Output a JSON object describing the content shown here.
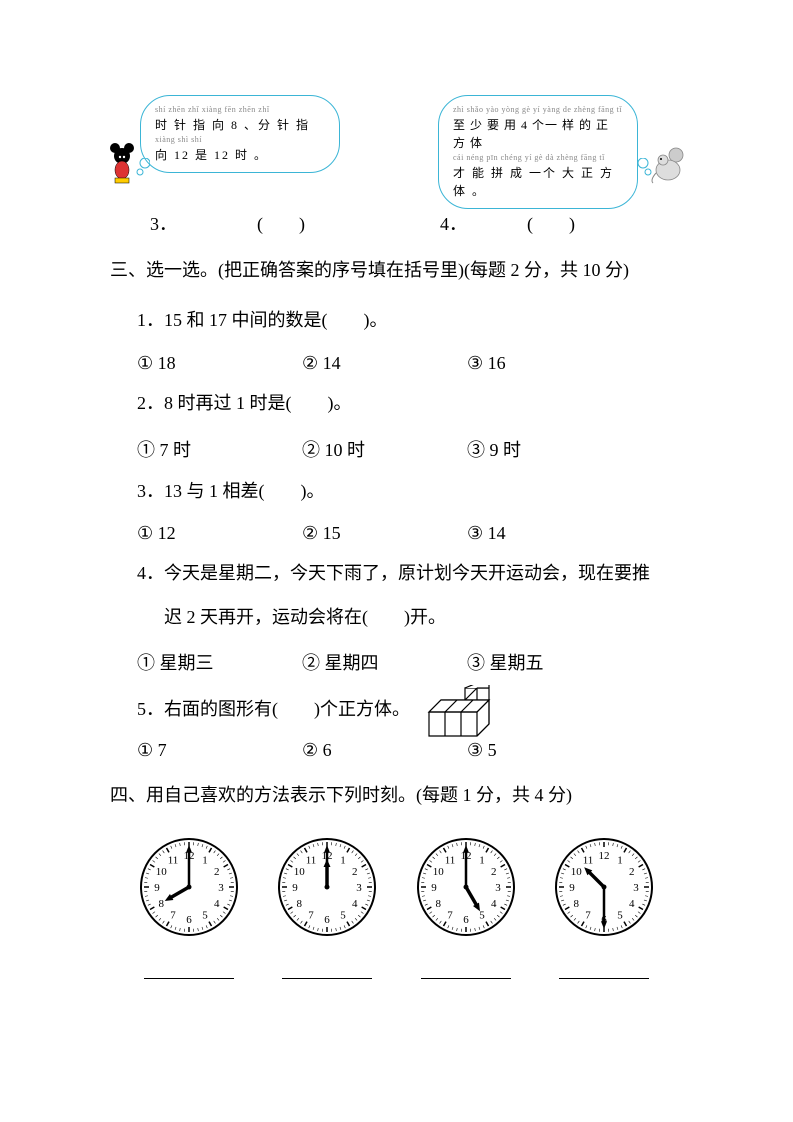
{
  "bubbles": {
    "left": {
      "pinyin1": "shí zhēn  zhǐ  xiàng          fēn zhēn zhǐ",
      "line1": "时 针 指 向  8 、分 针 指",
      "pinyin2": "xiàng         shì           shí",
      "line2": "向  12 是 12 时 。"
    },
    "right": {
      "pinyin1": "zhì shǎo yào yòng     gè  yí  yàng de zhèng fāng tǐ",
      "line1": "至 少 要 用 4 个一 样 的 正 方 体",
      "pinyin2": "cái néng pīn chéng  yí  gè  dà zhèng fāng  tǐ",
      "line2": "才 能 拼 成  一个 大 正  方 体 。"
    }
  },
  "tf": {
    "label3": "3．",
    "label4": "4．",
    "paren": "(　　)"
  },
  "section3": {
    "header": "三、选一选。(把正确答案的序号填在括号里)(每题 2 分，共 10 分)",
    "q1": {
      "text": "1．15 和 17 中间的数是(　　)。",
      "opts": [
        "①  18",
        "②  14",
        "③  16"
      ]
    },
    "q2": {
      "text": "2．8 时再过 1 时是(　　)。",
      "opts": [
        "①  7 时",
        "②  10 时",
        "③  9 时"
      ]
    },
    "q3": {
      "text": "3．13 与 1 相差(　　)。",
      "opts": [
        "①  12",
        "②  15",
        "③  14"
      ]
    },
    "q4": {
      "line1": "4．今天是星期二，今天下雨了，原计划今天开运动会，现在要推",
      "line2": "迟 2 天再开，运动会将在(　　)开。",
      "opts": [
        "①  星期三",
        "②  星期四",
        "③  星期五"
      ]
    },
    "q5": {
      "text": "5．右面的图形有(　　)个正方体。",
      "opts": [
        "①  7",
        "②  6",
        "③  5"
      ]
    }
  },
  "section4": {
    "header": "四、用自己喜欢的方法表示下列时刻。(每题 1 分，共 4 分)",
    "clocks": [
      {
        "hour": 8,
        "minute": 0
      },
      {
        "hour": 12,
        "minute": 0
      },
      {
        "hour": 5,
        "minute": 0
      },
      {
        "hour": 10,
        "minute": 30
      }
    ]
  },
  "colors": {
    "bubble_border": "#3bb5d6",
    "text": "#000000"
  }
}
